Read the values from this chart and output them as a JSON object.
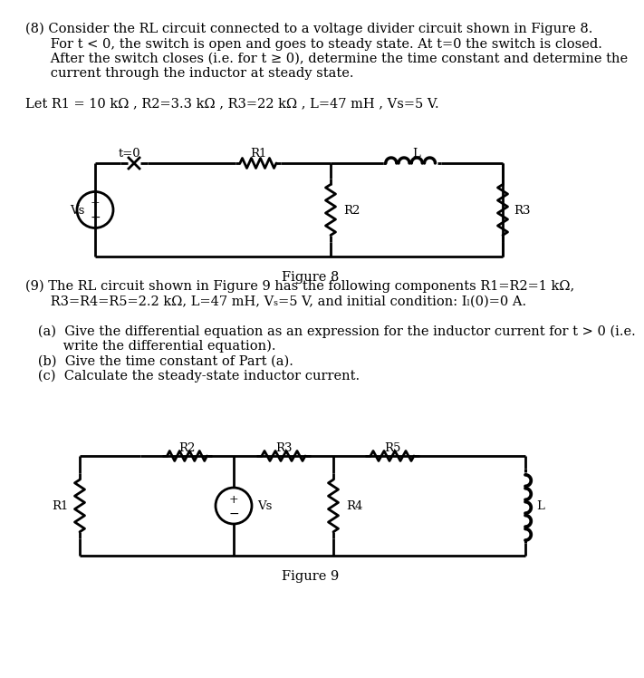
{
  "bg_color": "#ffffff",
  "text_color": "#000000",
  "line_color": "#000000",
  "fig_width": 6.67,
  "fig_height": 7.29,
  "problem8": {
    "line1": "(8) Consider the RL circuit connected to a voltage divider circuit shown in Figure 8.",
    "line2": "      For t < 0, the switch is open and goes to steady state. At t=0 the switch is closed.",
    "line3": "      After the switch closes (i.e. for t ≥ 0), determine the time constant and determine the",
    "line4": "      current through the inductor at steady state.",
    "line5": "Let R1 = 10 kΩ , R2=3.3 kΩ , R3=22 kΩ , L=47 mH , Vs=5 V."
  },
  "problem9": {
    "line1": "(9) The RL circuit shown in Figure 9 has the following components R1=R2=1 kΩ,",
    "line2": "      R3=R4=R5=2.2 kΩ, L=47 mH, Vₛ=5 V, and initial condition: Iₗ(0)=0 A.",
    "line3": "   (a)  Give the differential equation as an expression for the inductor current for t > 0 (i.e.",
    "line4": "         write the differential equation).",
    "line5": "   (b)  Give the time constant of Part (a).",
    "line6": "   (c)  Calculate the steady-state inductor current."
  },
  "fig8_caption": "Figure 8",
  "fig9_caption": "Figure 9"
}
